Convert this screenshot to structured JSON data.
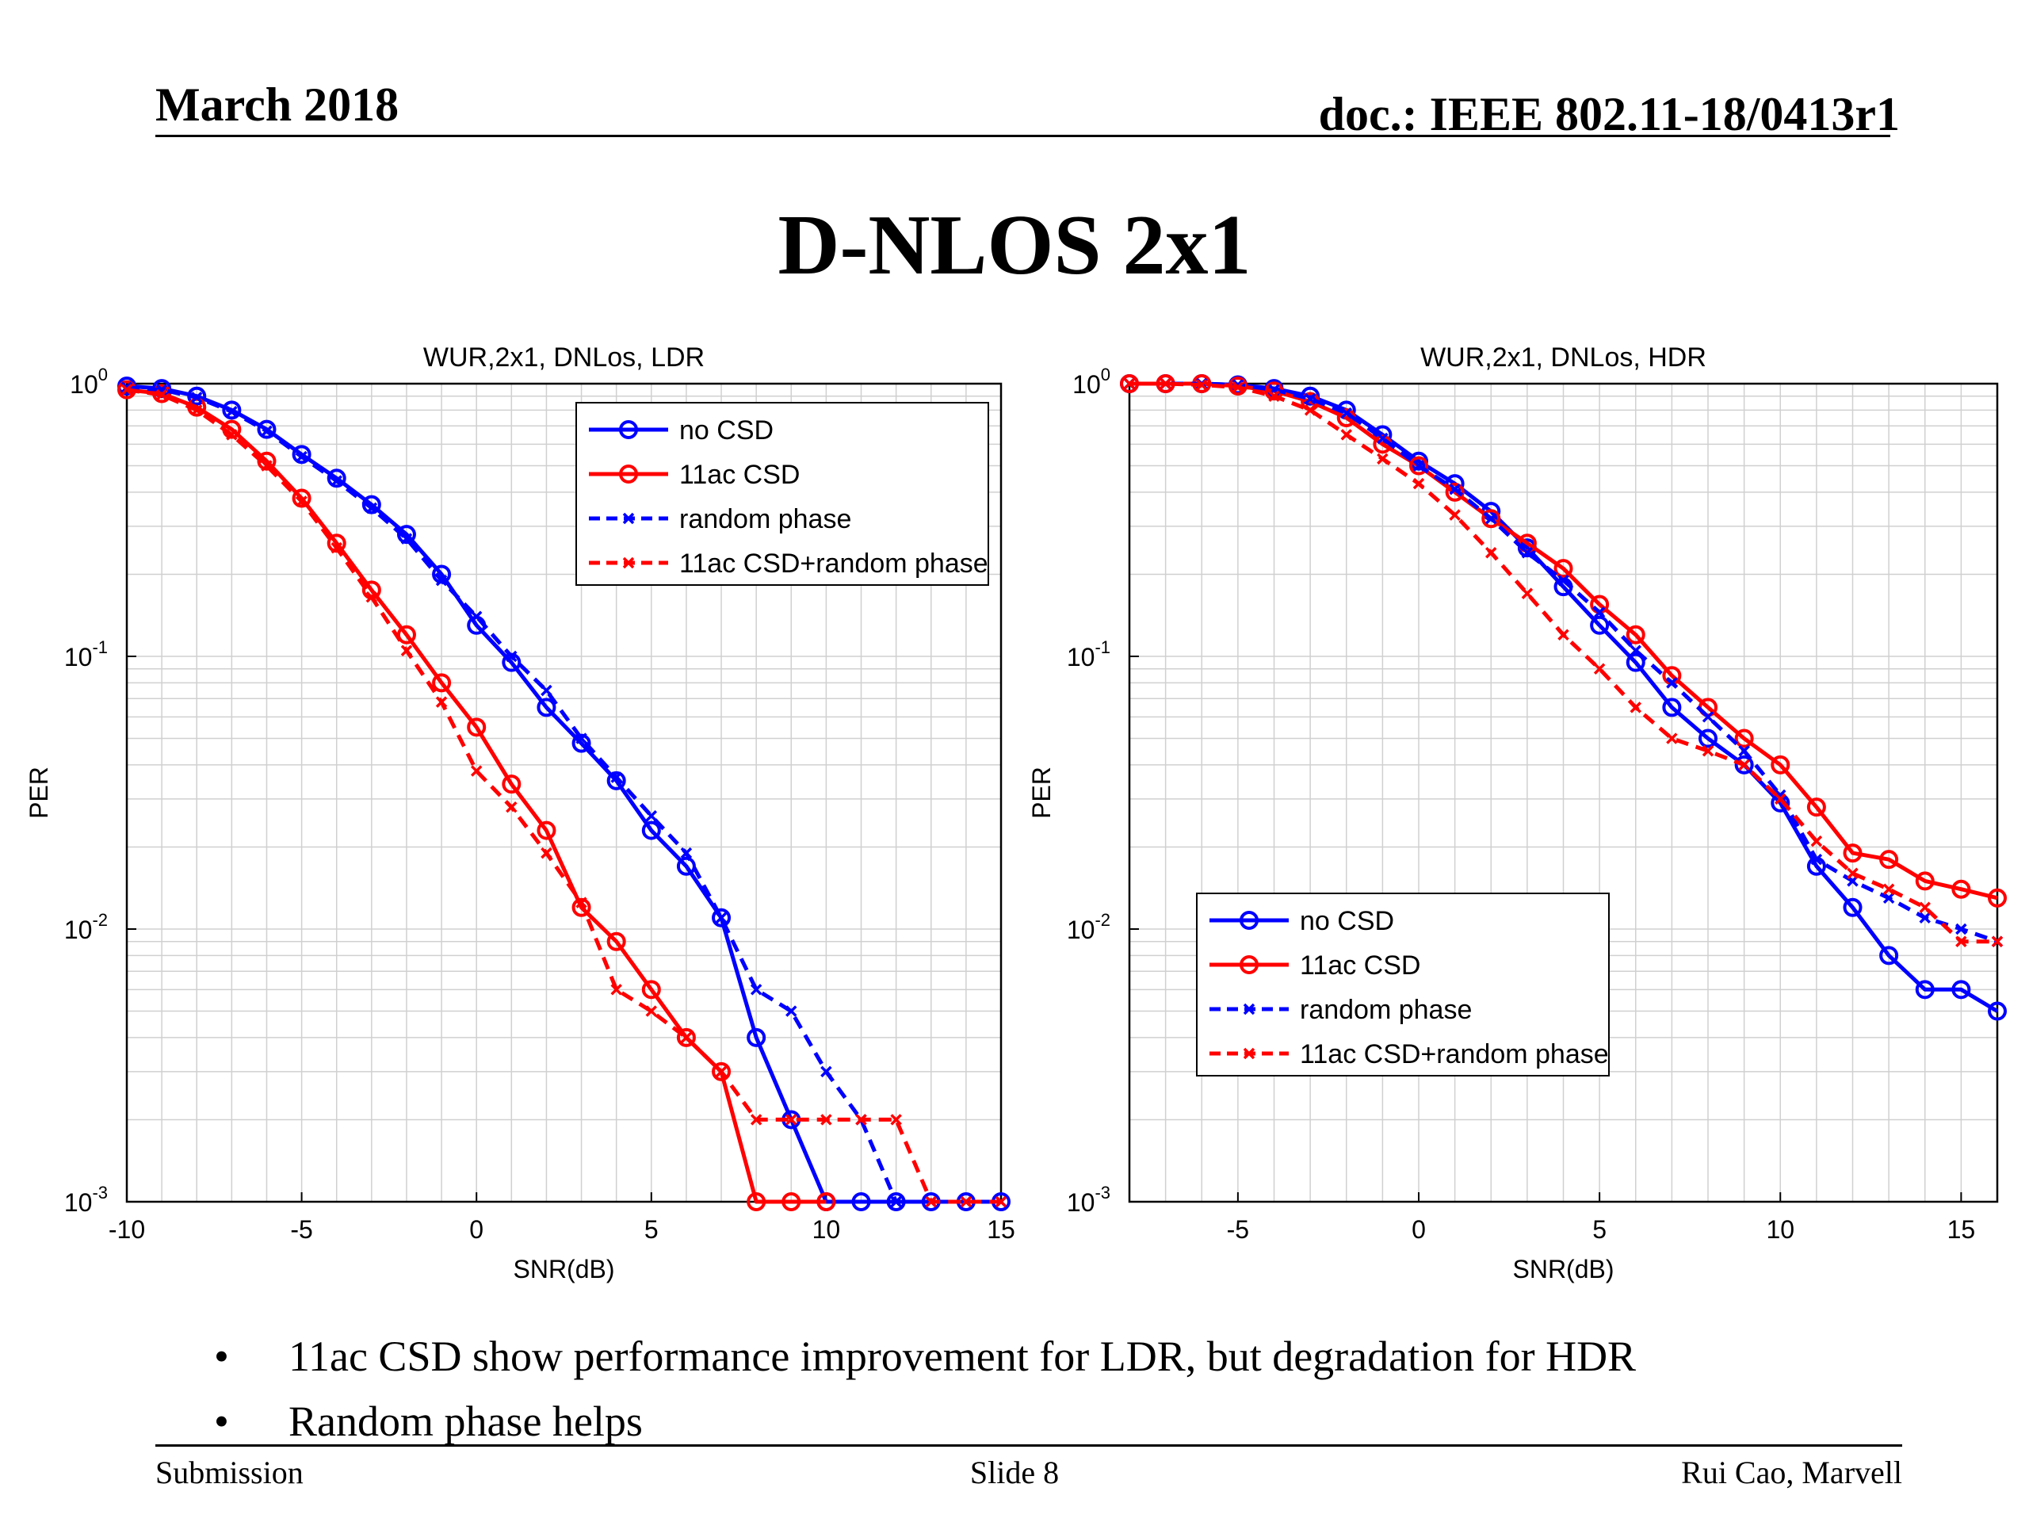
{
  "header": {
    "date": "March 2018",
    "doc": "doc.: IEEE 802.11-18/0413r1"
  },
  "slide_title": "D-NLOS 2x1",
  "bullets": [
    "11ac CSD show performance improvement for LDR, but degradation for HDR",
    "Random phase helps"
  ],
  "footer": {
    "left": "Submission",
    "center": "Slide 8",
    "right": "Rui Cao, Marvell"
  },
  "colors": {
    "blue": "#0000ff",
    "red": "#ff0000",
    "grid": "#d0d0d0"
  },
  "chart_data": [
    {
      "type": "line",
      "title": "WUR,2x1, DNLos, LDR",
      "xlabel": "SNR(dB)",
      "ylabel": "PER",
      "xlim": [
        -10,
        15
      ],
      "ylim": [
        0.001,
        1
      ],
      "yscale": "log",
      "xticks": [
        -10,
        -5,
        0,
        5,
        10,
        15
      ],
      "grid": true,
      "legend_position": "top-right",
      "series": [
        {
          "name": "no CSD",
          "color": "blue",
          "style": "solid",
          "marker": "circle",
          "x": [
            -10,
            -9,
            -8,
            -7,
            -6,
            -5,
            -4,
            -3,
            -2,
            -1,
            0,
            1,
            2,
            3,
            4,
            5,
            6,
            7,
            8,
            9,
            10,
            11,
            12,
            13,
            14,
            15
          ],
          "y": [
            0.98,
            0.96,
            0.9,
            0.8,
            0.68,
            0.55,
            0.45,
            0.36,
            0.28,
            0.2,
            0.13,
            0.095,
            0.065,
            0.048,
            0.035,
            0.023,
            0.017,
            0.011,
            0.004,
            0.002,
            0.001,
            0.001,
            0.001,
            0.001,
            0.001,
            0.001
          ]
        },
        {
          "name": "11ac CSD",
          "color": "red",
          "style": "solid",
          "marker": "circle",
          "x": [
            -10,
            -9,
            -8,
            -7,
            -6,
            -5,
            -4,
            -3,
            -2,
            -1,
            0,
            1,
            2,
            3,
            4,
            5,
            6,
            7,
            8,
            9,
            10
          ],
          "y": [
            0.95,
            0.92,
            0.82,
            0.68,
            0.52,
            0.38,
            0.26,
            0.175,
            0.12,
            0.08,
            0.055,
            0.034,
            0.023,
            0.012,
            0.009,
            0.006,
            0.004,
            0.003,
            0.001,
            0.001,
            0.001
          ]
        },
        {
          "name": "random phase",
          "color": "blue",
          "style": "dashed",
          "marker": "x",
          "x": [
            -10,
            -9,
            -8,
            -7,
            -6,
            -5,
            -4,
            -3,
            -2,
            -1,
            0,
            1,
            2,
            3,
            4,
            5,
            6,
            7,
            8,
            9,
            10,
            11,
            12,
            13,
            14,
            15
          ],
          "y": [
            0.97,
            0.95,
            0.89,
            0.79,
            0.67,
            0.54,
            0.44,
            0.35,
            0.27,
            0.19,
            0.14,
            0.1,
            0.075,
            0.05,
            0.036,
            0.026,
            0.019,
            0.011,
            0.006,
            0.005,
            0.003,
            0.002,
            0.001,
            0.001,
            0.001,
            0.001
          ]
        },
        {
          "name": "11ac CSD+random phase",
          "color": "red",
          "style": "dashed",
          "marker": "x",
          "x": [
            -10,
            -9,
            -8,
            -7,
            -6,
            -5,
            -4,
            -3,
            -2,
            -1,
            0,
            1,
            2,
            3,
            4,
            5,
            6,
            7,
            8,
            9,
            10,
            11,
            12,
            13,
            14,
            15
          ],
          "y": [
            0.95,
            0.91,
            0.8,
            0.65,
            0.5,
            0.37,
            0.25,
            0.165,
            0.105,
            0.068,
            0.038,
            0.028,
            0.019,
            0.0125,
            0.006,
            0.005,
            0.004,
            0.003,
            0.002,
            0.002,
            0.002,
            0.002,
            0.002,
            0.001,
            0.001,
            0.001
          ]
        }
      ]
    },
    {
      "type": "line",
      "title": "WUR,2x1, DNLos, HDR",
      "xlabel": "SNR(dB)",
      "ylabel": "PER",
      "xlim": [
        -8,
        16
      ],
      "ylim": [
        0.001,
        1
      ],
      "yscale": "log",
      "xticks": [
        -5,
        0,
        5,
        10,
        15
      ],
      "grid": true,
      "legend_position": "bottom-left",
      "series": [
        {
          "name": "no CSD",
          "color": "blue",
          "style": "solid",
          "marker": "circle",
          "x": [
            -8,
            -7,
            -6,
            -5,
            -4,
            -3,
            -2,
            -1,
            0,
            1,
            2,
            3,
            4,
            5,
            6,
            7,
            8,
            9,
            10,
            11,
            12,
            13,
            14,
            15,
            16
          ],
          "y": [
            1.0,
            1.0,
            1.0,
            0.99,
            0.96,
            0.9,
            0.8,
            0.65,
            0.52,
            0.43,
            0.34,
            0.25,
            0.18,
            0.13,
            0.095,
            0.065,
            0.05,
            0.04,
            0.029,
            0.017,
            0.012,
            0.008,
            0.006,
            0.006,
            0.005
          ]
        },
        {
          "name": "11ac CSD",
          "color": "red",
          "style": "solid",
          "marker": "circle",
          "x": [
            -8,
            -7,
            -6,
            -5,
            -4,
            -3,
            -2,
            -1,
            0,
            1,
            2,
            3,
            4,
            5,
            6,
            7,
            8,
            9,
            10,
            11,
            12,
            13,
            14,
            15,
            16
          ],
          "y": [
            1.0,
            1.0,
            1.0,
            0.98,
            0.94,
            0.86,
            0.75,
            0.6,
            0.5,
            0.4,
            0.32,
            0.26,
            0.21,
            0.155,
            0.12,
            0.085,
            0.065,
            0.05,
            0.04,
            0.028,
            0.019,
            0.018,
            0.015,
            0.014,
            0.013
          ]
        },
        {
          "name": "random phase",
          "color": "blue",
          "style": "dashed",
          "marker": "x",
          "x": [
            -8,
            -7,
            -6,
            -5,
            -4,
            -3,
            -2,
            -1,
            0,
            1,
            2,
            3,
            4,
            5,
            6,
            7,
            8,
            9,
            10,
            11,
            12,
            13,
            14,
            15,
            16
          ],
          "y": [
            1.0,
            1.0,
            1.0,
            0.99,
            0.95,
            0.88,
            0.78,
            0.63,
            0.5,
            0.41,
            0.32,
            0.24,
            0.19,
            0.145,
            0.105,
            0.08,
            0.06,
            0.045,
            0.031,
            0.018,
            0.015,
            0.013,
            0.011,
            0.01,
            0.009
          ]
        },
        {
          "name": "11ac CSD+random phase",
          "color": "red",
          "style": "dashed",
          "marker": "x",
          "x": [
            -8,
            -7,
            -6,
            -5,
            -4,
            -3,
            -2,
            -1,
            0,
            1,
            2,
            3,
            4,
            5,
            6,
            7,
            8,
            9,
            10,
            11,
            12,
            13,
            14,
            15,
            16
          ],
          "y": [
            1.0,
            1.0,
            0.99,
            0.97,
            0.9,
            0.8,
            0.65,
            0.53,
            0.43,
            0.33,
            0.24,
            0.17,
            0.12,
            0.09,
            0.065,
            0.05,
            0.045,
            0.04,
            0.03,
            0.021,
            0.016,
            0.014,
            0.012,
            0.009,
            0.009
          ]
        }
      ]
    }
  ]
}
